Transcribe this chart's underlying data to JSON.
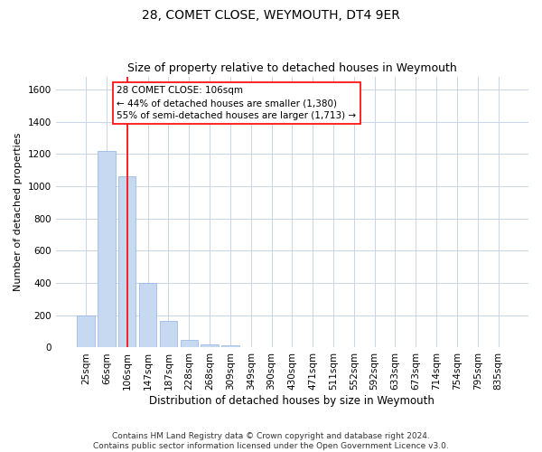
{
  "title": "28, COMET CLOSE, WEYMOUTH, DT4 9ER",
  "subtitle": "Size of property relative to detached houses in Weymouth",
  "xlabel": "Distribution of detached houses by size in Weymouth",
  "ylabel": "Number of detached properties",
  "categories": [
    "25sqm",
    "66sqm",
    "106sqm",
    "147sqm",
    "187sqm",
    "228sqm",
    "268sqm",
    "309sqm",
    "349sqm",
    "390sqm",
    "430sqm",
    "471sqm",
    "511sqm",
    "552sqm",
    "592sqm",
    "633sqm",
    "673sqm",
    "714sqm",
    "754sqm",
    "795sqm",
    "835sqm"
  ],
  "values": [
    200,
    1220,
    1060,
    400,
    163,
    50,
    22,
    13,
    0,
    0,
    0,
    0,
    0,
    0,
    0,
    0,
    0,
    0,
    0,
    0,
    0
  ],
  "bar_color": "#c6d9f0",
  "bar_edge_color": "#8db4e2",
  "vline_x_index": 2,
  "vline_color": "red",
  "annotation_text": "28 COMET CLOSE: 106sqm\n← 44% of detached houses are smaller (1,380)\n55% of semi-detached houses are larger (1,713) →",
  "annotation_box_color": "white",
  "annotation_box_edge_color": "red",
  "ylim": [
    0,
    1680
  ],
  "yticks": [
    0,
    200,
    400,
    600,
    800,
    1000,
    1200,
    1400,
    1600
  ],
  "grid_color": "#c8d4e8",
  "footnote": "Contains HM Land Registry data © Crown copyright and database right 2024.\nContains public sector information licensed under the Open Government Licence v3.0.",
  "title_fontsize": 10,
  "subtitle_fontsize": 9,
  "xlabel_fontsize": 8.5,
  "ylabel_fontsize": 8,
  "tick_fontsize": 7.5,
  "annotation_fontsize": 7.5,
  "footnote_fontsize": 6.5
}
